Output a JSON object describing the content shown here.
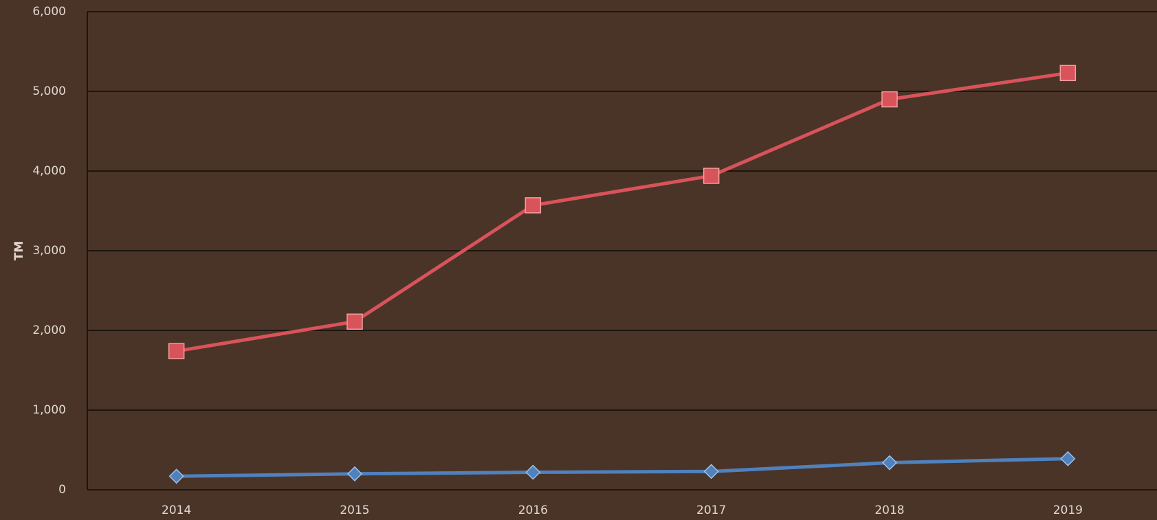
{
  "chart_data": {
    "type": "line",
    "y_label": "TM",
    "categories": [
      "2014",
      "2015",
      "2016",
      "2017",
      "2018",
      "2019"
    ],
    "series": [
      {
        "color": "#d9535a",
        "marker": "square",
        "values": [
          1740,
          2110,
          3570,
          3940,
          4900,
          5230
        ]
      },
      {
        "color": "#4f81bd",
        "marker": "diamond",
        "values": [
          170,
          200,
          220,
          230,
          340,
          390
        ]
      }
    ],
    "ylim": [
      0,
      6000
    ],
    "yticks": [
      0,
      {
        "value": 1000,
        "label": "1,000"
      },
      {
        "value": 2000,
        "label": "2,000"
      },
      {
        "value": 3000,
        "label": "3,000"
      },
      {
        "value": 4000,
        "label": "4,000"
      },
      {
        "value": 5000,
        "label": "5,000"
      },
      {
        "value": 6000,
        "label": "6,000"
      }
    ],
    "grid": true
  }
}
